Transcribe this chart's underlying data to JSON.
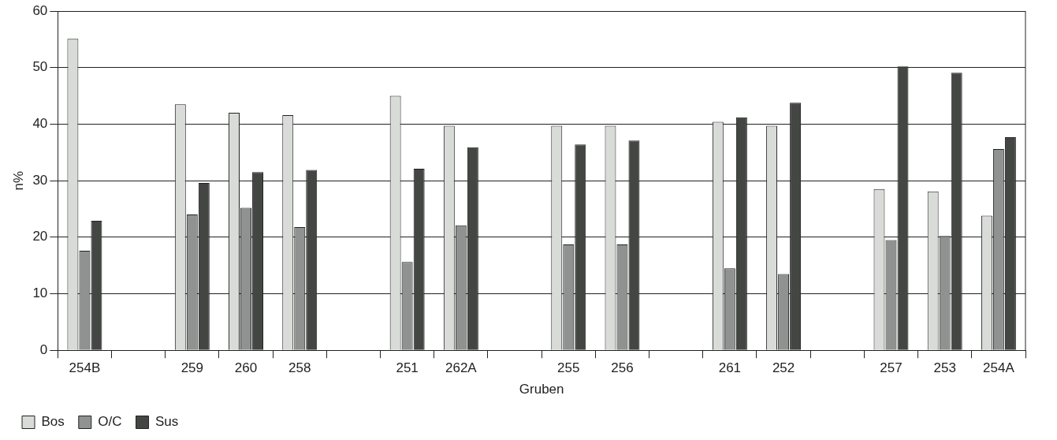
{
  "chart_data": {
    "type": "bar",
    "xlabel": "Gruben",
    "ylabel": "n%",
    "categories": [
      "254B",
      null,
      "259",
      "260",
      "258",
      null,
      "251",
      "262A",
      null,
      "255",
      "256",
      null,
      "261",
      "252",
      null,
      "257",
      "253",
      "254A"
    ],
    "series": [
      {
        "name": "Bos",
        "color": "#d9dbd8",
        "values": [
          55.1,
          null,
          43.5,
          42.0,
          41.6,
          null,
          45.0,
          39.7,
          null,
          39.7,
          39.7,
          null,
          40.4,
          39.7,
          null,
          28.5,
          28.1,
          23.8
        ]
      },
      {
        "name": "O/C",
        "color": "#8f9290",
        "values": [
          17.6,
          null,
          24.0,
          25.2,
          21.8,
          null,
          15.6,
          22.1,
          null,
          18.7,
          18.7,
          null,
          14.5,
          13.5,
          null,
          19.5,
          20.2,
          35.6
        ]
      },
      {
        "name": "Sus",
        "color": "#444644",
        "values": [
          22.9,
          null,
          29.6,
          31.5,
          31.9,
          null,
          32.1,
          35.9,
          null,
          36.4,
          37.1,
          null,
          41.2,
          43.8,
          null,
          50.2,
          49.1,
          37.7
        ]
      }
    ],
    "ylim": [
      0,
      60
    ],
    "yticks": [
      0,
      10,
      20,
      30,
      40,
      50,
      60
    ],
    "grid": "y",
    "legend": "bottom left"
  }
}
